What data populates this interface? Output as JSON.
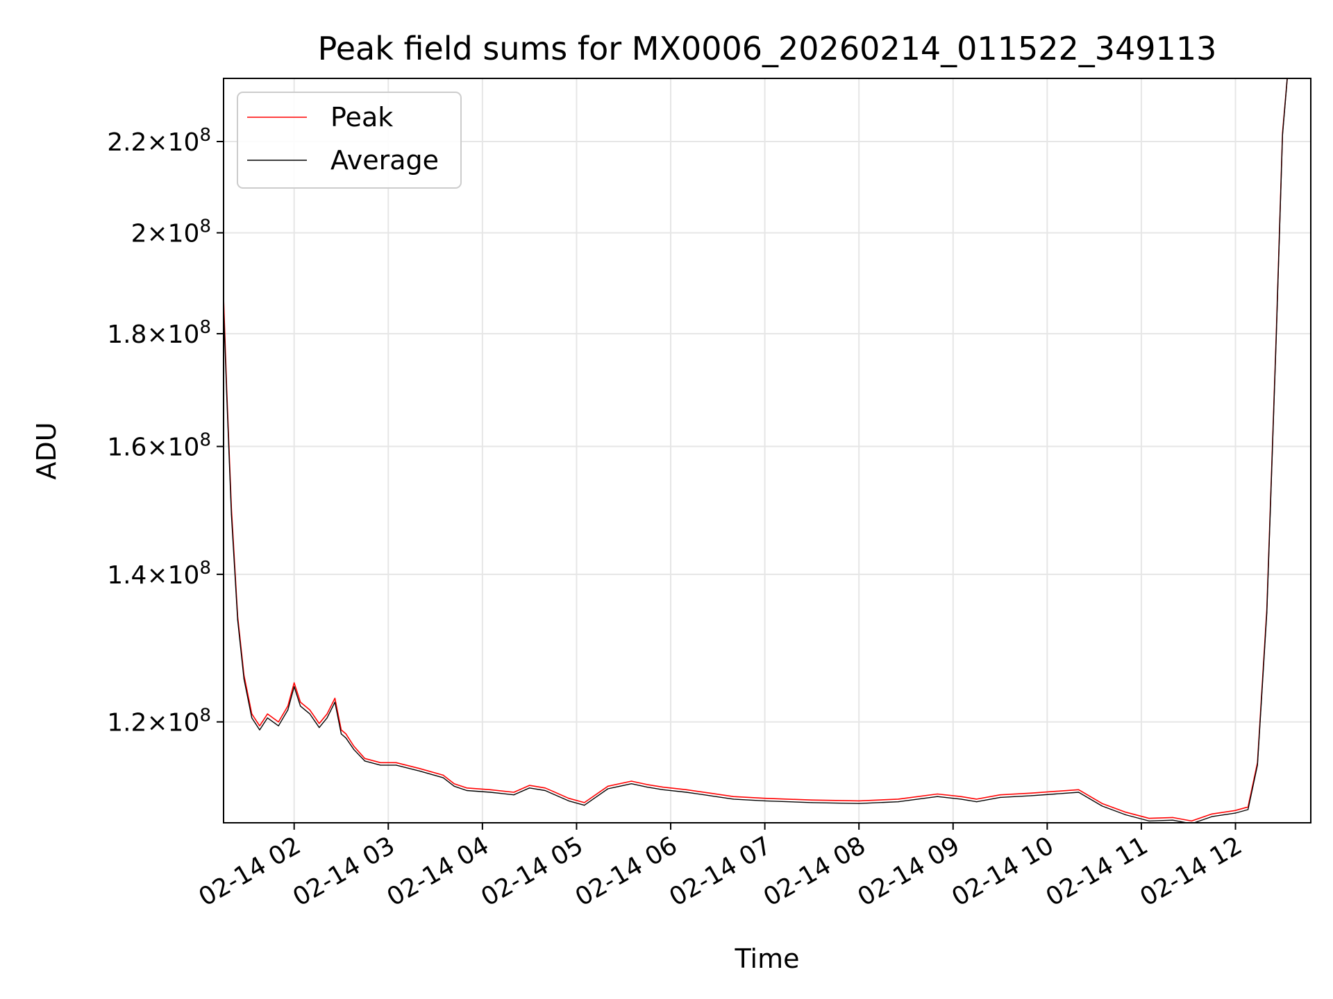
{
  "chart_data": {
    "type": "line",
    "title": "Peak field sums for MX0006_20260214_011522_349113",
    "xlabel": "Time",
    "ylabel": "ADU",
    "y_scale": "log",
    "grid": true,
    "legend_placement": "top-left",
    "xlim": [
      "2026-02-14 01:15",
      "2026-02-14 12:48"
    ],
    "ylim": [
      108000000,
      235000000
    ],
    "x_ticks": [
      "02-14 02",
      "02-14 03",
      "02-14 04",
      "02-14 05",
      "02-14 06",
      "02-14 07",
      "02-14 08",
      "02-14 09",
      "02-14 10",
      "02-14 11",
      "02-14 12"
    ],
    "y_ticks": [
      {
        "value": 120000000,
        "mantissa": "1.2",
        "exponent": "8"
      },
      {
        "value": 140000000,
        "mantissa": "1.4",
        "exponent": "8"
      },
      {
        "value": 160000000,
        "mantissa": "1.6",
        "exponent": "8"
      },
      {
        "value": 180000000,
        "mantissa": "1.8",
        "exponent": "8"
      },
      {
        "value": 200000000,
        "mantissa": "2",
        "exponent": "8"
      },
      {
        "value": 220000000,
        "mantissa": "2.2",
        "exponent": "8"
      }
    ],
    "series": [
      {
        "name": "Peak",
        "color": "#ff0000",
        "x": [
          "2026-02-14 01:15",
          "2026-02-14 01:17",
          "2026-02-14 01:20",
          "2026-02-14 01:24",
          "2026-02-14 01:28",
          "2026-02-14 01:33",
          "2026-02-14 01:38",
          "2026-02-14 01:43",
          "2026-02-14 01:50",
          "2026-02-14 01:56",
          "2026-02-14 02:00",
          "2026-02-14 02:04",
          "2026-02-14 02:10",
          "2026-02-14 02:16",
          "2026-02-14 02:21",
          "2026-02-14 02:26",
          "2026-02-14 02:30",
          "2026-02-14 02:33",
          "2026-02-14 02:38",
          "2026-02-14 02:45",
          "2026-02-14 02:55",
          "2026-02-14 03:05",
          "2026-02-14 03:20",
          "2026-02-14 03:35",
          "2026-02-14 03:42",
          "2026-02-14 03:50",
          "2026-02-14 04:05",
          "2026-02-14 04:20",
          "2026-02-14 04:30",
          "2026-02-14 04:40",
          "2026-02-14 04:45",
          "2026-02-14 04:55",
          "2026-02-14 05:05",
          "2026-02-14 05:20",
          "2026-02-14 05:35",
          "2026-02-14 05:45",
          "2026-02-14 05:55",
          "2026-02-14 06:10",
          "2026-02-14 06:25",
          "2026-02-14 06:40",
          "2026-02-14 07:00",
          "2026-02-14 07:30",
          "2026-02-14 08:00",
          "2026-02-14 08:25",
          "2026-02-14 08:50",
          "2026-02-14 09:05",
          "2026-02-14 09:15",
          "2026-02-14 09:30",
          "2026-02-14 09:50",
          "2026-02-14 10:05",
          "2026-02-14 10:20",
          "2026-02-14 10:35",
          "2026-02-14 10:50",
          "2026-02-14 11:05",
          "2026-02-14 11:20",
          "2026-02-14 11:32",
          "2026-02-14 11:45",
          "2026-02-14 12:00",
          "2026-02-14 12:08",
          "2026-02-14 12:14",
          "2026-02-14 12:20",
          "2026-02-14 12:26",
          "2026-02-14 12:30",
          "2026-02-14 12:33"
        ],
        "values": [
          187000000,
          170000000,
          150000000,
          134000000,
          126000000,
          121000000,
          119500000,
          121000000,
          120000000,
          122000000,
          125000000,
          122500000,
          121500000,
          119800000,
          121000000,
          123000000,
          119000000,
          118500000,
          117000000,
          115500000,
          115000000,
          115000000,
          114300000,
          113500000,
          112500000,
          112000000,
          111800000,
          111500000,
          112300000,
          112000000,
          111600000,
          110800000,
          110300000,
          112200000,
          112800000,
          112400000,
          112100000,
          111800000,
          111400000,
          111000000,
          110800000,
          110600000,
          110500000,
          110700000,
          111300000,
          111000000,
          110700000,
          111200000,
          111400000,
          111600000,
          111800000,
          110200000,
          109200000,
          108500000,
          108600000,
          108200000,
          109000000,
          109400000,
          109800000,
          115000000,
          135000000,
          180000000,
          222000000,
          235000000
        ]
      },
      {
        "name": "Average",
        "color": "#000000",
        "x": [
          "2026-02-14 01:15",
          "2026-02-14 01:17",
          "2026-02-14 01:20",
          "2026-02-14 01:24",
          "2026-02-14 01:28",
          "2026-02-14 01:33",
          "2026-02-14 01:38",
          "2026-02-14 01:43",
          "2026-02-14 01:50",
          "2026-02-14 01:56",
          "2026-02-14 02:00",
          "2026-02-14 02:04",
          "2026-02-14 02:10",
          "2026-02-14 02:16",
          "2026-02-14 02:21",
          "2026-02-14 02:26",
          "2026-02-14 02:30",
          "2026-02-14 02:33",
          "2026-02-14 02:38",
          "2026-02-14 02:45",
          "2026-02-14 02:55",
          "2026-02-14 03:05",
          "2026-02-14 03:20",
          "2026-02-14 03:35",
          "2026-02-14 03:42",
          "2026-02-14 03:50",
          "2026-02-14 04:05",
          "2026-02-14 04:20",
          "2026-02-14 04:30",
          "2026-02-14 04:40",
          "2026-02-14 04:45",
          "2026-02-14 04:55",
          "2026-02-14 05:05",
          "2026-02-14 05:20",
          "2026-02-14 05:35",
          "2026-02-14 05:45",
          "2026-02-14 05:55",
          "2026-02-14 06:10",
          "2026-02-14 06:25",
          "2026-02-14 06:40",
          "2026-02-14 07:00",
          "2026-02-14 07:30",
          "2026-02-14 08:00",
          "2026-02-14 08:25",
          "2026-02-14 08:50",
          "2026-02-14 09:05",
          "2026-02-14 09:15",
          "2026-02-14 09:30",
          "2026-02-14 09:50",
          "2026-02-14 10:05",
          "2026-02-14 10:20",
          "2026-02-14 10:35",
          "2026-02-14 10:50",
          "2026-02-14 11:05",
          "2026-02-14 11:20",
          "2026-02-14 11:32",
          "2026-02-14 11:45",
          "2026-02-14 12:00",
          "2026-02-14 12:08",
          "2026-02-14 12:14",
          "2026-02-14 12:20",
          "2026-02-14 12:26",
          "2026-02-14 12:30",
          "2026-02-14 12:33"
        ],
        "values": [
          185000000,
          169000000,
          149000000,
          133500000,
          125500000,
          120500000,
          119000000,
          120500000,
          119500000,
          121500000,
          124500000,
          122000000,
          121000000,
          119300000,
          120500000,
          122500000,
          118500000,
          118000000,
          116600000,
          115200000,
          114700000,
          114700000,
          114000000,
          113200000,
          112200000,
          111700000,
          111500000,
          111200000,
          112000000,
          111700000,
          111300000,
          110500000,
          110000000,
          111900000,
          112500000,
          112100000,
          111800000,
          111500000,
          111100000,
          110700000,
          110500000,
          110300000,
          110200000,
          110400000,
          111000000,
          110700000,
          110400000,
          110900000,
          111100000,
          111300000,
          111500000,
          109900000,
          108900000,
          108200000,
          108300000,
          107900000,
          108700000,
          109100000,
          109500000,
          114700000,
          134500000,
          179500000,
          221500000,
          235000000
        ]
      }
    ]
  }
}
